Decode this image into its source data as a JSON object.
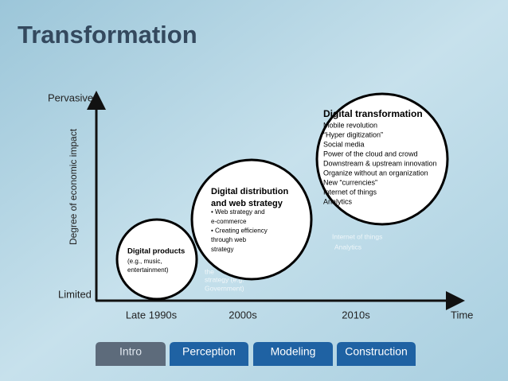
{
  "header": {
    "title": "Transformation"
  },
  "axes": {
    "y_top": "Pervasive",
    "y_bottom": "Limited",
    "y_label": "Degree of economic impact",
    "x_end": "Time",
    "x_labels": [
      "Late 1990s",
      "2000s",
      "2010s"
    ]
  },
  "stages": [
    {
      "title_lines": [
        "Digital products"
      ],
      "items": [
        "(e.g., music,",
        "entertainment)"
      ]
    },
    {
      "title_lines": [
        "Digital distribution",
        "and web strategy"
      ],
      "items": [
        "• Web strategy and",
        "e-commerce",
        "• Creating efficiency",
        "through web",
        "strategy"
      ]
    },
    {
      "title_lines": [
        "Digital transformation"
      ],
      "items": [
        "Mobile revolution",
        "“Hyper digitization”",
        "Social media",
        "Power of the cloud and crowd",
        "Downstream & upstream innovation",
        "Organize without an organization",
        "New “currencies”",
        "Internet of things",
        "Analytics"
      ]
    }
  ],
  "ghost_text": [
    "the",
    "strategy (e.g.",
    "Government)",
    "Internet of things",
    "Analytics"
  ],
  "tabs": [
    "Intro",
    "Perception",
    "Modeling",
    "Construction"
  ]
}
